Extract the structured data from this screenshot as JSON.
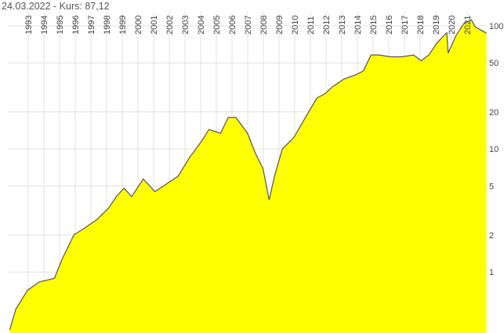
{
  "chart_data": {
    "type": "area",
    "title": "24.03.2022  -  Kurs: 87,12",
    "x": [
      1991.82,
      1992.21,
      1992.95,
      1993.69,
      1994.67,
      1995.17,
      1995.91,
      1996.65,
      1997.38,
      1998.12,
      1998.62,
      1999.11,
      1999.6,
      2000.34,
      2001.08,
      2001.82,
      2002.56,
      2003.31,
      2004.05,
      2004.53,
      2005.27,
      2005.76,
      2006.25,
      2006.99,
      2007.48,
      2007.98,
      2008.37,
      2008.71,
      2009.21,
      2009.95,
      2010.68,
      2011.42,
      2011.92,
      2012.41,
      2013.15,
      2013.89,
      2014.38,
      2014.87,
      2015.36,
      2016.1,
      2016.84,
      2017.58,
      2018.07,
      2018.56,
      2019.05,
      2019.7,
      2019.79,
      2020.28,
      2020.78,
      2021.27,
      2021.51,
      2022.23
    ],
    "series": [
      {
        "color": "#ffff00",
        "line_color": "#555555",
        "values": [
          0.34,
          0.5,
          0.71,
          0.83,
          0.89,
          1.28,
          2.0,
          2.3,
          2.67,
          3.3,
          4.1,
          4.8,
          4.1,
          5.7,
          4.5,
          5.2,
          6.0,
          8.6,
          11.5,
          14.4,
          13.4,
          18,
          18,
          13.4,
          9.3,
          6.9,
          3.85,
          6,
          10,
          12.4,
          18,
          26,
          28,
          32,
          37,
          40,
          43,
          58,
          58,
          56,
          56,
          58,
          52,
          58,
          72,
          88,
          60,
          83,
          104,
          112,
          98,
          87.12
        ]
      }
    ],
    "xlim": [
      1991.7,
      2022.3
    ],
    "xticks": [
      1993,
      1994,
      1995,
      1996,
      1997,
      1998,
      1999,
      2000,
      2001,
      2002,
      2003,
      2004,
      2005,
      2006,
      2007,
      2008,
      2009,
      2010,
      2011,
      2012,
      2013,
      2014,
      2015,
      2016,
      2017,
      2018,
      2019,
      2020,
      2021
    ],
    "ylim": [
      0.32,
      130
    ],
    "yticks": [
      100,
      50,
      20,
      10,
      5,
      2,
      1
    ],
    "log_scale": true,
    "grid": true
  }
}
